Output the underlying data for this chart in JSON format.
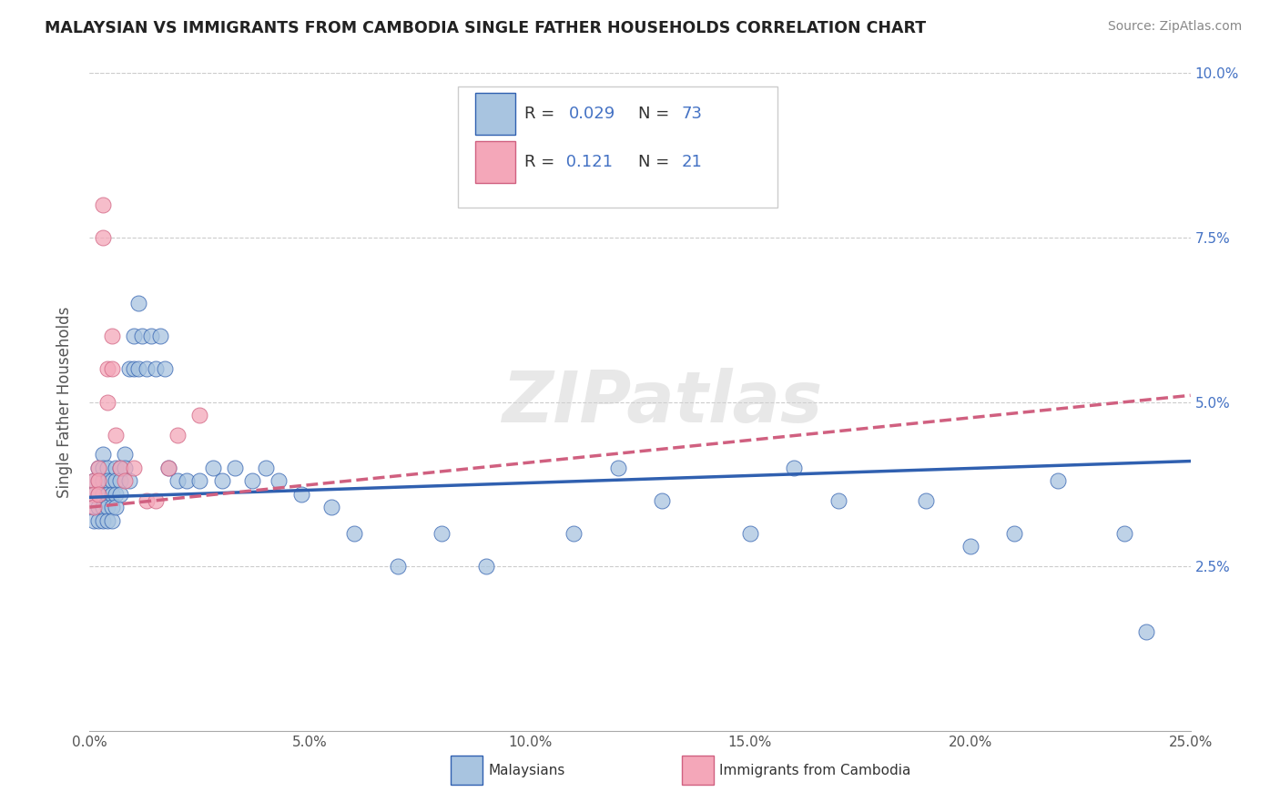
{
  "title": "MALAYSIAN VS IMMIGRANTS FROM CAMBODIA SINGLE FATHER HOUSEHOLDS CORRELATION CHART",
  "source": "Source: ZipAtlas.com",
  "ylabel": "Single Father Households",
  "xlim": [
    0,
    0.25
  ],
  "ylim": [
    0,
    0.1
  ],
  "r_malaysian": 0.029,
  "n_malaysian": 73,
  "r_cambodian": 0.121,
  "n_cambodian": 21,
  "color_malaysian": "#a8c4e0",
  "color_cambodian": "#f4a7b9",
  "line_color_malaysian": "#3060b0",
  "line_color_cambodian": "#d06080",
  "legend_label_malaysian": "Malaysians",
  "legend_label_cambodian": "Immigrants from Cambodia",
  "watermark": "ZIPatlas",
  "malaysian_x": [
    0.001,
    0.001,
    0.001,
    0.001,
    0.002,
    0.002,
    0.002,
    0.002,
    0.002,
    0.003,
    0.003,
    0.003,
    0.003,
    0.003,
    0.003,
    0.004,
    0.004,
    0.004,
    0.004,
    0.004,
    0.005,
    0.005,
    0.005,
    0.005,
    0.006,
    0.006,
    0.006,
    0.006,
    0.007,
    0.007,
    0.007,
    0.008,
    0.008,
    0.009,
    0.009,
    0.01,
    0.01,
    0.011,
    0.011,
    0.012,
    0.013,
    0.014,
    0.015,
    0.016,
    0.017,
    0.018,
    0.02,
    0.022,
    0.025,
    0.028,
    0.03,
    0.033,
    0.037,
    0.04,
    0.043,
    0.048,
    0.055,
    0.06,
    0.07,
    0.08,
    0.09,
    0.11,
    0.12,
    0.13,
    0.15,
    0.16,
    0.17,
    0.19,
    0.2,
    0.21,
    0.22,
    0.235,
    0.24
  ],
  "malaysian_y": [
    0.038,
    0.036,
    0.034,
    0.032,
    0.04,
    0.038,
    0.036,
    0.034,
    0.032,
    0.042,
    0.04,
    0.038,
    0.036,
    0.034,
    0.032,
    0.04,
    0.038,
    0.036,
    0.034,
    0.032,
    0.038,
    0.036,
    0.034,
    0.032,
    0.04,
    0.038,
    0.036,
    0.034,
    0.04,
    0.038,
    0.036,
    0.042,
    0.04,
    0.055,
    0.038,
    0.06,
    0.055,
    0.055,
    0.065,
    0.06,
    0.055,
    0.06,
    0.055,
    0.06,
    0.055,
    0.04,
    0.038,
    0.038,
    0.038,
    0.04,
    0.038,
    0.04,
    0.038,
    0.04,
    0.038,
    0.036,
    0.034,
    0.03,
    0.025,
    0.03,
    0.025,
    0.03,
    0.04,
    0.035,
    0.03,
    0.04,
    0.035,
    0.035,
    0.028,
    0.03,
    0.038,
    0.03,
    0.015
  ],
  "cambodian_x": [
    0.001,
    0.001,
    0.001,
    0.002,
    0.002,
    0.002,
    0.003,
    0.003,
    0.004,
    0.004,
    0.005,
    0.005,
    0.006,
    0.007,
    0.008,
    0.01,
    0.013,
    0.015,
    0.018,
    0.02,
    0.025
  ],
  "cambodian_y": [
    0.038,
    0.036,
    0.034,
    0.04,
    0.038,
    0.036,
    0.08,
    0.075,
    0.055,
    0.05,
    0.06,
    0.055,
    0.045,
    0.04,
    0.038,
    0.04,
    0.035,
    0.035,
    0.04,
    0.045,
    0.048
  ]
}
